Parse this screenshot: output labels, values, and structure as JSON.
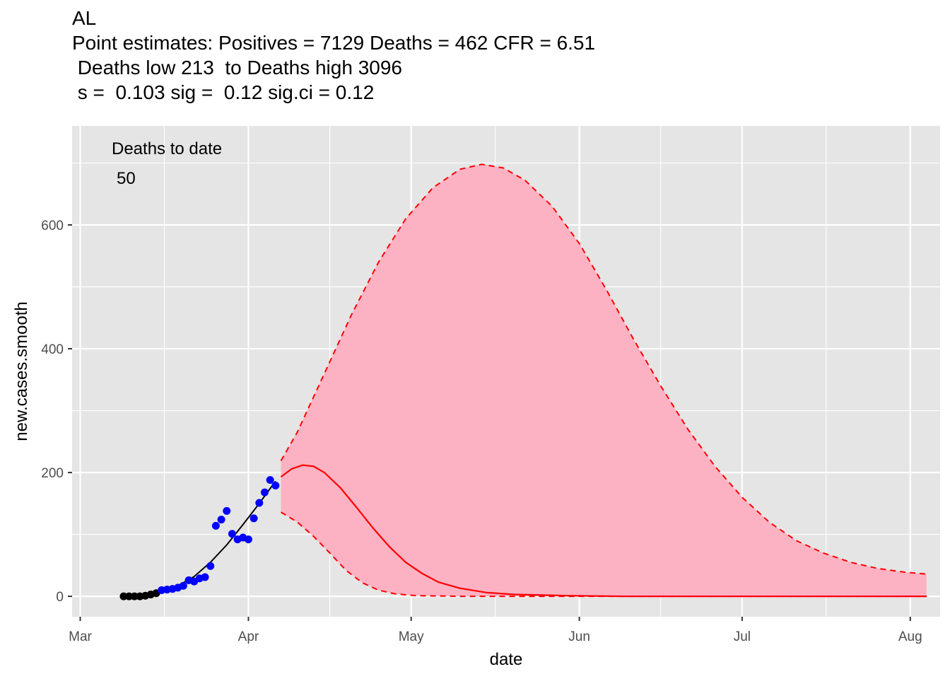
{
  "title_lines": [
    "AL",
    "Point estimates: Positives = 7129 Deaths = 462 CFR = 6.51",
    " Deaths low 213  to Deaths high 3096",
    " s =  0.103 sig =  0.12 sig.ci = 0.12"
  ],
  "annotation": {
    "label": "Deaths to date",
    "value": "50"
  },
  "chart_data": {
    "type": "line",
    "xlabel": "date",
    "ylabel": "new.cases.smooth",
    "x_ticks": [
      "Mar",
      "Apr",
      "May",
      "Jun",
      "Jul",
      "Aug"
    ],
    "x_tick_days": [
      0,
      31,
      61,
      92,
      122,
      153
    ],
    "xlim_days": [
      -1.5,
      158.5
    ],
    "y_ticks": [
      0,
      200,
      400,
      600
    ],
    "ylim": [
      -33,
      760
    ],
    "grid": true,
    "legend": "none",
    "colors": {
      "panel": "#e5e5e5",
      "grid": "#ffffff",
      "early_points": "#000000",
      "recent_points": "#0000ff",
      "fit_line": "#000000",
      "projection": "#ff0000",
      "band_fill": "#fdb2c3",
      "band_edge": "#ff0000"
    },
    "observed_points": [
      {
        "day": 8,
        "y": 0,
        "group": "early"
      },
      {
        "day": 9,
        "y": 0,
        "group": "early"
      },
      {
        "day": 10,
        "y": 0,
        "group": "early"
      },
      {
        "day": 11,
        "y": 0,
        "group": "early"
      },
      {
        "day": 12,
        "y": 1,
        "group": "early"
      },
      {
        "day": 13,
        "y": 3,
        "group": "early"
      },
      {
        "day": 14,
        "y": 5,
        "group": "early"
      },
      {
        "day": 15,
        "y": 10,
        "group": "recent"
      },
      {
        "day": 16,
        "y": 11,
        "group": "recent"
      },
      {
        "day": 17,
        "y": 12,
        "group": "recent"
      },
      {
        "day": 18,
        "y": 14,
        "group": "recent"
      },
      {
        "day": 19,
        "y": 17,
        "group": "recent"
      },
      {
        "day": 20,
        "y": 26,
        "group": "recent"
      },
      {
        "day": 21,
        "y": 24,
        "group": "recent"
      },
      {
        "day": 22,
        "y": 29,
        "group": "recent"
      },
      {
        "day": 23,
        "y": 31,
        "group": "recent"
      },
      {
        "day": 24,
        "y": 49,
        "group": "recent"
      },
      {
        "day": 25,
        "y": 114,
        "group": "recent"
      },
      {
        "day": 26,
        "y": 124,
        "group": "recent"
      },
      {
        "day": 27,
        "y": 138,
        "group": "recent"
      },
      {
        "day": 28,
        "y": 101,
        "group": "recent"
      },
      {
        "day": 29,
        "y": 92,
        "group": "recent"
      },
      {
        "day": 30,
        "y": 95,
        "group": "recent"
      },
      {
        "day": 31,
        "y": 92,
        "group": "recent"
      },
      {
        "day": 32,
        "y": 126,
        "group": "recent"
      },
      {
        "day": 33,
        "y": 151,
        "group": "recent"
      },
      {
        "day": 34,
        "y": 168,
        "group": "recent"
      },
      {
        "day": 35,
        "y": 188,
        "group": "recent"
      },
      {
        "day": 36,
        "y": 179,
        "group": "recent"
      }
    ],
    "fit_line": [
      {
        "day": 8,
        "y": 0
      },
      {
        "day": 12,
        "y": 2
      },
      {
        "day": 15,
        "y": 8
      },
      {
        "day": 18,
        "y": 17
      },
      {
        "day": 21,
        "y": 32
      },
      {
        "day": 24,
        "y": 55
      },
      {
        "day": 27,
        "y": 83
      },
      {
        "day": 30,
        "y": 116
      },
      {
        "day": 33,
        "y": 150
      },
      {
        "day": 36,
        "y": 186
      }
    ],
    "projection": [
      {
        "day": 37,
        "y": 193
      },
      {
        "day": 39,
        "y": 206
      },
      {
        "day": 41,
        "y": 212
      },
      {
        "day": 43,
        "y": 210
      },
      {
        "day": 45,
        "y": 200
      },
      {
        "day": 48,
        "y": 175
      },
      {
        "day": 51,
        "y": 143
      },
      {
        "day": 54,
        "y": 110
      },
      {
        "day": 57,
        "y": 80
      },
      {
        "day": 60,
        "y": 55
      },
      {
        "day": 63,
        "y": 37
      },
      {
        "day": 66,
        "y": 23
      },
      {
        "day": 70,
        "y": 13
      },
      {
        "day": 75,
        "y": 6
      },
      {
        "day": 80,
        "y": 3
      },
      {
        "day": 90,
        "y": 1
      },
      {
        "day": 100,
        "y": 0
      },
      {
        "day": 156,
        "y": 0
      }
    ],
    "band_upper": [
      {
        "day": 37,
        "y": 219
      },
      {
        "day": 40,
        "y": 265
      },
      {
        "day": 45,
        "y": 360
      },
      {
        "day": 50,
        "y": 455
      },
      {
        "day": 55,
        "y": 540
      },
      {
        "day": 60,
        "y": 610
      },
      {
        "day": 65,
        "y": 660
      },
      {
        "day": 70,
        "y": 690
      },
      {
        "day": 74,
        "y": 698
      },
      {
        "day": 78,
        "y": 692
      },
      {
        "day": 82,
        "y": 672
      },
      {
        "day": 87,
        "y": 630
      },
      {
        "day": 92,
        "y": 570
      },
      {
        "day": 97,
        "y": 495
      },
      {
        "day": 102,
        "y": 415
      },
      {
        "day": 107,
        "y": 340
      },
      {
        "day": 112,
        "y": 270
      },
      {
        "day": 117,
        "y": 210
      },
      {
        "day": 122,
        "y": 160
      },
      {
        "day": 127,
        "y": 120
      },
      {
        "day": 132,
        "y": 90
      },
      {
        "day": 137,
        "y": 70
      },
      {
        "day": 142,
        "y": 55
      },
      {
        "day": 147,
        "y": 45
      },
      {
        "day": 152,
        "y": 39
      },
      {
        "day": 156,
        "y": 36
      }
    ],
    "band_lower": [
      {
        "day": 37,
        "y": 136
      },
      {
        "day": 40,
        "y": 120
      },
      {
        "day": 43,
        "y": 97
      },
      {
        "day": 46,
        "y": 70
      },
      {
        "day": 49,
        "y": 42
      },
      {
        "day": 52,
        "y": 22
      },
      {
        "day": 55,
        "y": 10
      },
      {
        "day": 58,
        "y": 4
      },
      {
        "day": 62,
        "y": 1
      },
      {
        "day": 70,
        "y": 0
      },
      {
        "day": 156,
        "y": 0
      }
    ]
  }
}
